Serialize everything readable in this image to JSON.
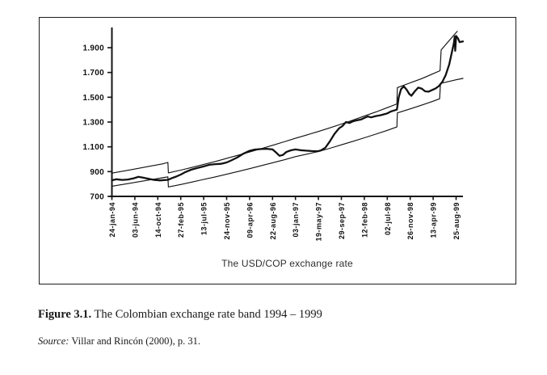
{
  "figure": {
    "caption_label": "Figure 3.1.",
    "caption_text": " The Colombian exchange rate band 1994 – 1999",
    "source_label": "Source:",
    "source_text": " Villar and Rincón (2000), p. 31."
  },
  "chart_data": {
    "type": "line",
    "title": "The USD/COP exchange rate",
    "xlabel": "",
    "ylabel": "",
    "grid": false,
    "legend_position": "none",
    "ylim": [
      700,
      2065
    ],
    "xlim_ticks": [
      0,
      15.3
    ],
    "y_tick_values": [
      700,
      900,
      1100,
      1300,
      1500,
      1700,
      1900
    ],
    "y_tick_labels": [
      "700",
      "900",
      "1.100",
      "1.300",
      "1.500",
      "1.700",
      "1.900"
    ],
    "x_tick_labels": [
      "24-jan-94",
      "03-jun-94",
      "14-oct-94",
      "27-feb-95",
      "13-jul-95",
      "24-nov-95",
      "09-apr-96",
      "22-aug-96",
      "03-jan-97",
      "19-may-97",
      "29-sep-97",
      "12-feb-98",
      "02-jul-98",
      "26-nov-98",
      "13-apr-99",
      "25-aug-99"
    ],
    "band_shifts": [
      {
        "at_tick": 2.45,
        "direction": "down"
      },
      {
        "at_tick": 12.43,
        "direction": "up"
      },
      {
        "at_tick": 14.3,
        "direction": "up"
      }
    ],
    "series": [
      {
        "name": "USD/COP market exchange rate",
        "role": "rate",
        "line": "thick",
        "points": [
          [
            0,
            830
          ],
          [
            0.2,
            838
          ],
          [
            0.45,
            833
          ],
          [
            0.7,
            836
          ],
          [
            0.95,
            846
          ],
          [
            1.15,
            858
          ],
          [
            1.35,
            852
          ],
          [
            1.6,
            842
          ],
          [
            1.85,
            833
          ],
          [
            2.1,
            829
          ],
          [
            2.45,
            834
          ],
          [
            2.6,
            846
          ],
          [
            2.8,
            860
          ],
          [
            3.0,
            876
          ],
          [
            3.2,
            896
          ],
          [
            3.45,
            915
          ],
          [
            3.7,
            928
          ],
          [
            4.0,
            942
          ],
          [
            4.25,
            955
          ],
          [
            4.5,
            960
          ],
          [
            4.75,
            963
          ],
          [
            5.0,
            974
          ],
          [
            5.2,
            990
          ],
          [
            5.45,
            1013
          ],
          [
            5.7,
            1042
          ],
          [
            6.0,
            1068
          ],
          [
            6.2,
            1077
          ],
          [
            6.5,
            1082
          ],
          [
            6.75,
            1084
          ],
          [
            7.0,
            1079
          ],
          [
            7.15,
            1055
          ],
          [
            7.3,
            1028
          ],
          [
            7.45,
            1034
          ],
          [
            7.6,
            1058
          ],
          [
            7.8,
            1072
          ],
          [
            8.0,
            1079
          ],
          [
            8.2,
            1073
          ],
          [
            8.45,
            1069
          ],
          [
            8.7,
            1066
          ],
          [
            8.95,
            1064
          ],
          [
            9.1,
            1070
          ],
          [
            9.3,
            1092
          ],
          [
            9.5,
            1145
          ],
          [
            9.7,
            1205
          ],
          [
            9.9,
            1250
          ],
          [
            10.05,
            1268
          ],
          [
            10.2,
            1300
          ],
          [
            10.35,
            1292
          ],
          [
            10.5,
            1305
          ],
          [
            10.7,
            1315
          ],
          [
            10.85,
            1320
          ],
          [
            11.0,
            1333
          ],
          [
            11.15,
            1345
          ],
          [
            11.3,
            1338
          ],
          [
            11.5,
            1348
          ],
          [
            11.7,
            1355
          ],
          [
            11.85,
            1362
          ],
          [
            12.0,
            1370
          ],
          [
            12.15,
            1385
          ],
          [
            12.3,
            1393
          ],
          [
            12.42,
            1400
          ],
          [
            12.5,
            1500
          ],
          [
            12.6,
            1565
          ],
          [
            12.72,
            1588
          ],
          [
            12.85,
            1560
          ],
          [
            12.95,
            1528
          ],
          [
            13.05,
            1512
          ],
          [
            13.2,
            1548
          ],
          [
            13.35,
            1578
          ],
          [
            13.5,
            1570
          ],
          [
            13.65,
            1548
          ],
          [
            13.8,
            1545
          ],
          [
            13.95,
            1558
          ],
          [
            14.1,
            1570
          ],
          [
            14.25,
            1590
          ],
          [
            14.4,
            1625
          ],
          [
            14.55,
            1680
          ],
          [
            14.7,
            1765
          ],
          [
            14.8,
            1850
          ],
          [
            14.9,
            1935
          ],
          [
            14.94,
            1990
          ],
          [
            14.96,
            1875
          ],
          [
            15.0,
            1995
          ],
          [
            15.08,
            1975
          ],
          [
            15.15,
            1945
          ],
          [
            15.3,
            1950
          ]
        ]
      },
      {
        "name": "band ceiling",
        "role": "ceiling",
        "line": "thin",
        "points": [
          [
            0,
            888
          ],
          [
            0.8,
            914
          ],
          [
            1.6,
            942
          ],
          [
            2.2,
            962
          ],
          [
            2.44,
            974
          ],
          [
            2.46,
            890
          ],
          [
            3,
            912
          ],
          [
            3.5,
            934
          ],
          [
            4,
            958
          ],
          [
            4.5,
            981
          ],
          [
            5,
            1007
          ],
          [
            5.5,
            1032
          ],
          [
            6,
            1058
          ],
          [
            6.5,
            1085
          ],
          [
            7,
            1112
          ],
          [
            7.5,
            1140
          ],
          [
            8,
            1169
          ],
          [
            8.5,
            1196
          ],
          [
            9,
            1224
          ],
          [
            9.5,
            1253
          ],
          [
            10,
            1284
          ],
          [
            10.5,
            1315
          ],
          [
            11,
            1348
          ],
          [
            11.5,
            1381
          ],
          [
            12,
            1416
          ],
          [
            12.42,
            1446
          ],
          [
            12.44,
            1578
          ],
          [
            13,
            1616
          ],
          [
            13.5,
            1650
          ],
          [
            14,
            1690
          ],
          [
            14.3,
            1714
          ],
          [
            14.35,
            1882
          ],
          [
            14.7,
            1958
          ],
          [
            15.05,
            2032
          ]
        ]
      },
      {
        "name": "band floor",
        "role": "floor",
        "line": "thin",
        "points": [
          [
            0,
            782
          ],
          [
            0.8,
            806
          ],
          [
            1.6,
            832
          ],
          [
            2.2,
            850
          ],
          [
            2.44,
            858
          ],
          [
            2.46,
            776
          ],
          [
            3,
            796
          ],
          [
            3.5,
            816
          ],
          [
            4,
            837
          ],
          [
            4.5,
            857
          ],
          [
            5,
            879
          ],
          [
            5.5,
            901
          ],
          [
            6,
            924
          ],
          [
            6.5,
            947
          ],
          [
            7,
            971
          ],
          [
            7.5,
            995
          ],
          [
            8,
            1021
          ],
          [
            8.5,
            1041
          ],
          [
            9,
            1062
          ],
          [
            9.5,
            1088
          ],
          [
            10,
            1116
          ],
          [
            10.5,
            1144
          ],
          [
            11,
            1173
          ],
          [
            11.5,
            1202
          ],
          [
            12,
            1233
          ],
          [
            12.42,
            1260
          ],
          [
            12.44,
            1374
          ],
          [
            13,
            1406
          ],
          [
            13.5,
            1436
          ],
          [
            14,
            1468
          ],
          [
            14.28,
            1488
          ],
          [
            14.32,
            1612
          ],
          [
            14.7,
            1628
          ],
          [
            15,
            1641
          ],
          [
            15.3,
            1652
          ]
        ]
      }
    ]
  }
}
